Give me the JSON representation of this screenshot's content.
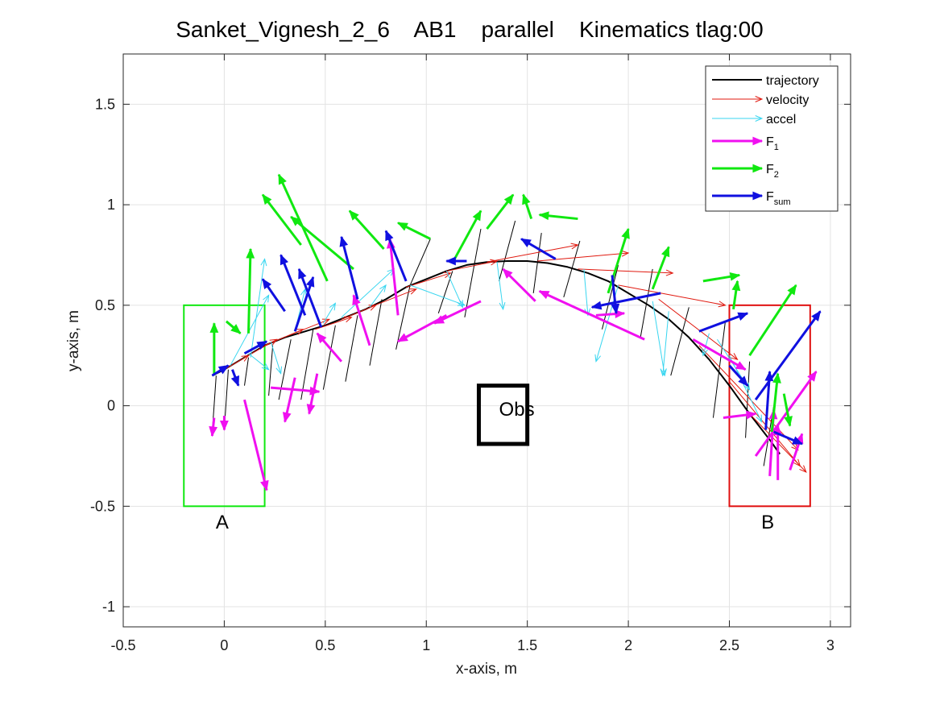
{
  "chart_data": {
    "type": "line",
    "title": "Sanket_Vignesh_2_6    AB1    parallel    Kinematics tlag:00",
    "xlabel": "x-axis, m",
    "ylabel": "y-axis, m",
    "xlim": [
      -0.5,
      3.1
    ],
    "ylim": [
      -1.1,
      1.75
    ],
    "xticks": [
      -0.5,
      0,
      0.5,
      1,
      1.5,
      2,
      2.5,
      3
    ],
    "xtick_labels": [
      "-0.5",
      "0",
      "0.5",
      "1",
      "1.5",
      "2",
      "2.5",
      "3"
    ],
    "yticks": [
      -1,
      -0.5,
      0,
      0.5,
      1,
      1.5
    ],
    "ytick_labels": [
      "-1",
      "-0.5",
      "0",
      "0.5",
      "1",
      "1.5"
    ],
    "grid": true,
    "legend_position": "top-right",
    "colors": {
      "trajectory": "#000000",
      "velocity": "#e0190f",
      "accel": "#38d6f0",
      "F1": "#f010f0",
      "F2": "#10e810",
      "Fsum": "#1010e0",
      "region_A": "#10e810",
      "region_B": "#e01010",
      "obstacle": "#000000"
    },
    "legend": [
      {
        "key": "trajectory",
        "label": "trajectory",
        "sub": ""
      },
      {
        "key": "velocity",
        "label": "velocity",
        "sub": ""
      },
      {
        "key": "accel",
        "label": "accel",
        "sub": ""
      },
      {
        "key": "F1",
        "label": "F",
        "sub": "1"
      },
      {
        "key": "F2",
        "label": "F",
        "sub": "2"
      },
      {
        "key": "Fsum",
        "label": "F",
        "sub": "sum"
      }
    ],
    "regions": [
      {
        "label": "A",
        "x": [
          -0.2,
          0.2
        ],
        "y": [
          -0.5,
          0.5
        ],
        "label_at": [
          -0.01,
          -0.61
        ]
      },
      {
        "label": "B",
        "x": [
          2.5,
          2.9
        ],
        "y": [
          -0.5,
          0.5
        ],
        "label_at": [
          2.69,
          -0.61
        ]
      }
    ],
    "obstacle": {
      "label": "Obs",
      "x": [
        1.26,
        1.5
      ],
      "y": [
        -0.19,
        0.1
      ],
      "label_at": [
        1.36,
        -0.05
      ]
    },
    "trajectory": {
      "x": [
        -0.06,
        0.0,
        0.1,
        0.2,
        0.3,
        0.4,
        0.5,
        0.6,
        0.7,
        0.8,
        0.9,
        1.0,
        1.1,
        1.2,
        1.3,
        1.4,
        1.5,
        1.6,
        1.7,
        1.8,
        1.9,
        2.0,
        2.1,
        2.2,
        2.3,
        2.4,
        2.5,
        2.6,
        2.7,
        2.75
      ],
      "y": [
        0.15,
        0.18,
        0.24,
        0.3,
        0.34,
        0.37,
        0.4,
        0.44,
        0.48,
        0.53,
        0.59,
        0.63,
        0.67,
        0.7,
        0.715,
        0.72,
        0.72,
        0.71,
        0.69,
        0.66,
        0.62,
        0.56,
        0.5,
        0.43,
        0.34,
        0.23,
        0.1,
        -0.04,
        -0.17,
        -0.24
      ]
    },
    "step_lines": [
      {
        "x": [
          [
            -0.04,
            0.15
          ],
          [
            -0.06,
            -0.14
          ]
        ]
      },
      {
        "x": [
          [
            0.02,
            0.18
          ],
          [
            0.0,
            -0.12
          ]
        ]
      },
      {
        "x": [
          [
            0.12,
            0.24
          ],
          [
            0.1,
            0.1
          ]
        ]
      },
      {
        "x": [
          [
            0.24,
            0.3
          ],
          [
            0.22,
            0.05
          ]
        ]
      },
      {
        "x": [
          [
            0.33,
            0.33
          ],
          [
            0.27,
            0.03
          ]
        ]
      },
      {
        "x": [
          [
            0.44,
            0.38
          ],
          [
            0.38,
            0.03
          ]
        ]
      },
      {
        "x": [
          [
            0.55,
            0.4
          ],
          [
            0.49,
            0.08
          ]
        ]
      },
      {
        "x": [
          [
            0.66,
            0.45
          ],
          [
            0.6,
            0.12
          ]
        ]
      },
      {
        "x": [
          [
            0.78,
            0.53
          ],
          [
            0.72,
            0.2
          ]
        ]
      },
      {
        "x": [
          [
            0.92,
            0.6
          ],
          [
            0.85,
            0.28
          ]
        ]
      },
      {
        "x": [
          [
            1.02,
            0.83
          ],
          [
            0.92,
            0.6
          ]
        ]
      },
      {
        "x": [
          [
            1.13,
            0.67
          ],
          [
            1.06,
            0.46
          ]
        ]
      },
      {
        "x": [
          [
            1.27,
            0.88
          ],
          [
            1.19,
            0.44
          ]
        ]
      },
      {
        "x": [
          [
            1.44,
            0.92
          ],
          [
            1.36,
            0.62
          ]
        ]
      },
      {
        "x": [
          [
            1.57,
            0.86
          ],
          [
            1.53,
            0.56
          ]
        ]
      },
      {
        "x": [
          [
            1.76,
            0.82
          ],
          [
            1.68,
            0.54
          ]
        ]
      },
      {
        "x": [
          [
            1.95,
            0.7
          ],
          [
            1.87,
            0.38
          ]
        ]
      },
      {
        "x": [
          [
            2.12,
            0.68
          ],
          [
            2.06,
            0.34
          ]
        ]
      },
      {
        "x": [
          [
            2.3,
            0.49
          ],
          [
            2.21,
            0.15
          ]
        ]
      },
      {
        "x": [
          [
            2.48,
            0.42
          ],
          [
            2.42,
            -0.06
          ]
        ]
      },
      {
        "x": [
          [
            2.6,
            0.22
          ],
          [
            2.58,
            -0.16
          ]
        ]
      },
      {
        "x": [
          [
            2.72,
            0.0
          ],
          [
            2.67,
            -0.3
          ]
        ]
      }
    ],
    "velocity_arrows": [
      {
        "from": [
          0.0,
          0.18
        ],
        "to": [
          0.12,
          0.25
        ]
      },
      {
        "from": [
          0.1,
          0.24
        ],
        "to": [
          0.26,
          0.33
        ]
      },
      {
        "from": [
          0.2,
          0.3
        ],
        "to": [
          0.39,
          0.38
        ]
      },
      {
        "from": [
          0.32,
          0.35
        ],
        "to": [
          0.52,
          0.43
        ]
      },
      {
        "from": [
          0.45,
          0.38
        ],
        "to": [
          0.63,
          0.44
        ]
      },
      {
        "from": [
          0.58,
          0.43
        ],
        "to": [
          0.75,
          0.5
        ]
      },
      {
        "from": [
          0.72,
          0.49
        ],
        "to": [
          0.95,
          0.58
        ]
      },
      {
        "from": [
          0.9,
          0.59
        ],
        "to": [
          1.12,
          0.66
        ]
      },
      {
        "from": [
          1.1,
          0.67
        ],
        "to": [
          1.35,
          0.72
        ]
      },
      {
        "from": [
          1.3,
          0.715
        ],
        "to": [
          1.75,
          0.8
        ]
      },
      {
        "from": [
          1.55,
          0.72
        ],
        "to": [
          2.0,
          0.76
        ]
      },
      {
        "from": [
          1.75,
          0.68
        ],
        "to": [
          2.22,
          0.66
        ]
      },
      {
        "from": [
          1.95,
          0.6
        ],
        "to": [
          2.48,
          0.5
        ]
      },
      {
        "from": [
          2.15,
          0.53
        ],
        "to": [
          2.54,
          0.23
        ]
      },
      {
        "from": [
          2.35,
          0.3
        ],
        "to": [
          2.84,
          -0.22
        ]
      },
      {
        "from": [
          2.5,
          0.12
        ],
        "to": [
          2.85,
          -0.3
        ]
      },
      {
        "from": [
          2.6,
          -0.04
        ],
        "to": [
          2.88,
          -0.33
        ]
      }
    ],
    "accel_arrows": [
      {
        "from": [
          0.03,
          0.2
        ],
        "to": [
          0.22,
          0.55
        ]
      },
      {
        "from": [
          0.13,
          0.24
        ],
        "to": [
          0.2,
          0.73
        ]
      },
      {
        "from": [
          0.12,
          0.26
        ],
        "to": [
          0.22,
          0.18
        ]
      },
      {
        "from": [
          0.23,
          0.32
        ],
        "to": [
          0.28,
          0.16
        ]
      },
      {
        "from": [
          0.35,
          0.37
        ],
        "to": [
          0.4,
          0.58
        ]
      },
      {
        "from": [
          0.49,
          0.41
        ],
        "to": [
          0.55,
          0.51
        ]
      },
      {
        "from": [
          0.58,
          0.44
        ],
        "to": [
          0.84,
          0.68
        ]
      },
      {
        "from": [
          0.72,
          0.49
        ],
        "to": [
          0.8,
          0.6
        ]
      },
      {
        "from": [
          0.92,
          0.6
        ],
        "to": [
          1.19,
          0.5
        ]
      },
      {
        "from": [
          1.1,
          0.67
        ],
        "to": [
          1.18,
          0.49
        ]
      },
      {
        "from": [
          1.35,
          0.715
        ],
        "to": [
          1.38,
          0.48
        ]
      },
      {
        "from": [
          1.78,
          0.68
        ],
        "to": [
          1.8,
          0.45
        ]
      },
      {
        "from": [
          1.95,
          0.6
        ],
        "to": [
          1.84,
          0.22
        ]
      },
      {
        "from": [
          2.12,
          0.52
        ],
        "to": [
          2.18,
          0.15
        ]
      },
      {
        "from": [
          2.2,
          0.47
        ],
        "to": [
          2.17,
          0.15
        ]
      },
      {
        "from": [
          2.4,
          0.36
        ],
        "to": [
          2.37,
          0.25
        ]
      },
      {
        "from": [
          2.44,
          0.33
        ],
        "to": [
          2.6,
          0.08
        ]
      },
      {
        "from": [
          2.5,
          0.25
        ],
        "to": [
          2.66,
          -0.08
        ]
      }
    ],
    "F1_arrows": [
      {
        "from": [
          -0.05,
          -0.06
        ],
        "to": [
          -0.06,
          -0.15
        ]
      },
      {
        "from": [
          0.0,
          -0.05
        ],
        "to": [
          0.0,
          -0.12
        ]
      },
      {
        "from": [
          0.1,
          0.03
        ],
        "to": [
          0.21,
          -0.42
        ]
      },
      {
        "from": [
          0.23,
          0.09
        ],
        "to": [
          0.47,
          0.07
        ]
      },
      {
        "from": [
          0.35,
          0.14
        ],
        "to": [
          0.3,
          -0.08
        ]
      },
      {
        "from": [
          0.46,
          0.16
        ],
        "to": [
          0.42,
          -0.04
        ]
      },
      {
        "from": [
          0.58,
          0.22
        ],
        "to": [
          0.46,
          0.36
        ]
      },
      {
        "from": [
          0.72,
          0.3
        ],
        "to": [
          0.64,
          0.55
        ]
      },
      {
        "from": [
          0.86,
          0.45
        ],
        "to": [
          0.82,
          0.83
        ]
      },
      {
        "from": [
          1.1,
          0.45
        ],
        "to": [
          0.86,
          0.32
        ]
      },
      {
        "from": [
          1.27,
          0.52
        ],
        "to": [
          1.04,
          0.41
        ]
      },
      {
        "from": [
          1.54,
          0.52
        ],
        "to": [
          1.38,
          0.68
        ]
      },
      {
        "from": [
          2.08,
          0.33
        ],
        "to": [
          1.56,
          0.57
        ]
      },
      {
        "from": [
          1.84,
          0.45
        ],
        "to": [
          1.98,
          0.46
        ]
      },
      {
        "from": [
          2.32,
          0.33
        ],
        "to": [
          2.58,
          0.18
        ]
      },
      {
        "from": [
          2.47,
          -0.06
        ],
        "to": [
          2.63,
          -0.04
        ]
      },
      {
        "from": [
          2.63,
          -0.25
        ],
        "to": [
          2.93,
          0.17
        ]
      },
      {
        "from": [
          2.7,
          -0.35
        ],
        "to": [
          2.72,
          -0.02
        ]
      },
      {
        "from": [
          2.74,
          -0.37
        ],
        "to": [
          2.74,
          -0.1
        ]
      },
      {
        "from": [
          2.8,
          -0.32
        ],
        "to": [
          2.86,
          -0.14
        ]
      }
    ],
    "F2_arrows": [
      {
        "from": [
          -0.05,
          0.15
        ],
        "to": [
          -0.05,
          0.41
        ]
      },
      {
        "from": [
          0.01,
          0.42
        ],
        "to": [
          0.08,
          0.36
        ]
      },
      {
        "from": [
          0.12,
          0.36
        ],
        "to": [
          0.13,
          0.78
        ]
      },
      {
        "from": [
          0.38,
          0.8
        ],
        "to": [
          0.19,
          1.05
        ]
      },
      {
        "from": [
          0.51,
          0.62
        ],
        "to": [
          0.27,
          1.15
        ]
      },
      {
        "from": [
          0.64,
          0.68
        ],
        "to": [
          0.33,
          0.94
        ]
      },
      {
        "from": [
          0.79,
          0.78
        ],
        "to": [
          0.62,
          0.97
        ]
      },
      {
        "from": [
          1.02,
          0.83
        ],
        "to": [
          0.86,
          0.91
        ]
      },
      {
        "from": [
          1.14,
          0.73
        ],
        "to": [
          1.27,
          0.97
        ]
      },
      {
        "from": [
          1.3,
          0.88
        ],
        "to": [
          1.43,
          1.05
        ]
      },
      {
        "from": [
          1.52,
          0.93
        ],
        "to": [
          1.48,
          1.05
        ]
      },
      {
        "from": [
          1.75,
          0.93
        ],
        "to": [
          1.56,
          0.95
        ]
      },
      {
        "from": [
          1.9,
          0.56
        ],
        "to": [
          2.0,
          0.88
        ]
      },
      {
        "from": [
          2.12,
          0.58
        ],
        "to": [
          2.2,
          0.79
        ]
      },
      {
        "from": [
          2.37,
          0.62
        ],
        "to": [
          2.55,
          0.65
        ]
      },
      {
        "from": [
          2.52,
          0.48
        ],
        "to": [
          2.54,
          0.62
        ]
      },
      {
        "from": [
          2.6,
          0.25
        ],
        "to": [
          2.83,
          0.6
        ]
      },
      {
        "from": [
          2.71,
          -0.13
        ],
        "to": [
          2.74,
          0.16
        ]
      },
      {
        "from": [
          2.77,
          0.06
        ],
        "to": [
          2.8,
          -0.1
        ]
      }
    ],
    "Fsum_arrows": [
      {
        "from": [
          -0.06,
          0.15
        ],
        "to": [
          0.02,
          0.2
        ]
      },
      {
        "from": [
          0.04,
          0.18
        ],
        "to": [
          0.07,
          0.1
        ]
      },
      {
        "from": [
          0.1,
          0.26
        ],
        "to": [
          0.21,
          0.32
        ]
      },
      {
        "from": [
          0.3,
          0.47
        ],
        "to": [
          0.19,
          0.63
        ]
      },
      {
        "from": [
          0.4,
          0.45
        ],
        "to": [
          0.28,
          0.75
        ]
      },
      {
        "from": [
          0.48,
          0.39
        ],
        "to": [
          0.37,
          0.68
        ]
      },
      {
        "from": [
          0.35,
          0.37
        ],
        "to": [
          0.44,
          0.64
        ]
      },
      {
        "from": [
          0.66,
          0.53
        ],
        "to": [
          0.58,
          0.84
        ]
      },
      {
        "from": [
          0.9,
          0.62
        ],
        "to": [
          0.8,
          0.87
        ]
      },
      {
        "from": [
          1.2,
          0.72
        ],
        "to": [
          1.1,
          0.72
        ]
      },
      {
        "from": [
          1.64,
          0.73
        ],
        "to": [
          1.47,
          0.83
        ]
      },
      {
        "from": [
          2.16,
          0.56
        ],
        "to": [
          1.82,
          0.49
        ]
      },
      {
        "from": [
          1.92,
          0.65
        ],
        "to": [
          1.94,
          0.46
        ]
      },
      {
        "from": [
          2.35,
          0.37
        ],
        "to": [
          2.59,
          0.46
        ]
      },
      {
        "from": [
          2.5,
          0.2
        ],
        "to": [
          2.59,
          0.1
        ]
      },
      {
        "from": [
          2.63,
          0.03
        ],
        "to": [
          2.95,
          0.47
        ]
      },
      {
        "from": [
          2.68,
          -0.12
        ],
        "to": [
          2.7,
          0.17
        ]
      },
      {
        "from": [
          2.72,
          -0.13
        ],
        "to": [
          2.86,
          -0.19
        ]
      }
    ]
  }
}
